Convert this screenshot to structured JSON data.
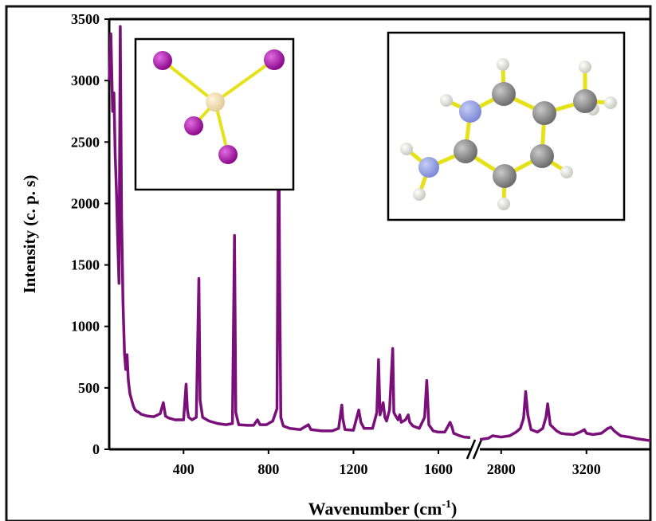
{
  "chart_data": {
    "type": "line",
    "xlabel": "Wavenumber (cm",
    "xlabel_sup": "-1",
    "xlabel_close": ")",
    "ylabel": "Intensity (c. p. s)",
    "ylim": [
      0,
      3500
    ],
    "yticks": [
      "0",
      "500",
      "1000",
      "1500",
      "2000",
      "2500",
      "3000",
      "3500"
    ],
    "axis_break": true,
    "segment1": {
      "xlim": [
        50,
        1750
      ],
      "xticks": [
        "400",
        "800",
        "1200",
        "1600"
      ]
    },
    "segment2": {
      "xlim": [
        2700,
        3500
      ],
      "xticks": [
        "2800",
        "3200"
      ]
    },
    "series": [
      {
        "color": "#7a0f7a",
        "segment1": {
          "x": [
            50,
            58,
            66,
            72,
            78,
            84,
            90,
            96,
            102,
            108,
            115,
            122,
            128,
            134,
            140,
            148,
            156,
            164,
            172,
            180,
            190,
            200,
            230,
            260,
            290,
            305,
            315,
            330,
            360,
            400,
            412,
            418,
            424,
            440,
            460,
            472,
            478,
            490,
            520,
            560,
            600,
            630,
            640,
            646,
            660,
            700,
            730,
            748,
            760,
            790,
            820,
            840,
            848,
            852,
            858,
            870,
            900,
            950,
            988,
            1000,
            1050,
            1100,
            1130,
            1145,
            1150,
            1160,
            1200,
            1225,
            1235,
            1250,
            1290,
            1310,
            1318,
            1325,
            1340,
            1348,
            1356,
            1370,
            1385,
            1390,
            1396,
            1410,
            1418,
            1425,
            1445,
            1458,
            1465,
            1480,
            1510,
            1535,
            1545,
            1555,
            1575,
            1600,
            1630,
            1655,
            1664,
            1672,
            1700,
            1720,
            1750
          ],
          "y": [
            3000,
            3380,
            2750,
            2900,
            2400,
            2100,
            1700,
            1350,
            3440,
            1900,
            1200,
            780,
            650,
            770,
            560,
            450,
            400,
            350,
            320,
            310,
            300,
            285,
            270,
            265,
            290,
            380,
            270,
            255,
            240,
            240,
            530,
            320,
            260,
            240,
            260,
            1390,
            400,
            260,
            230,
            210,
            200,
            210,
            1740,
            300,
            200,
            195,
            195,
            240,
            200,
            200,
            230,
            330,
            2810,
            1500,
            260,
            190,
            170,
            160,
            200,
            160,
            150,
            150,
            170,
            360,
            250,
            160,
            155,
            320,
            220,
            170,
            170,
            300,
            730,
            280,
            380,
            260,
            230,
            320,
            820,
            300,
            280,
            240,
            280,
            220,
            240,
            280,
            220,
            190,
            170,
            260,
            560,
            200,
            150,
            140,
            140,
            220,
            180,
            130,
            110,
            100,
            95
          ]
        },
        "segment2": {
          "x": [
            2700,
            2740,
            2760,
            2800,
            2840,
            2870,
            2890,
            2905,
            2915,
            2925,
            2940,
            2970,
            2995,
            3010,
            3018,
            3030,
            3060,
            3080,
            3100,
            3140,
            3170,
            3190,
            3200,
            3230,
            3270,
            3300,
            3315,
            3330,
            3360,
            3400,
            3440,
            3480,
            3500
          ],
          "y": [
            80,
            90,
            110,
            100,
            110,
            140,
            170,
            250,
            470,
            280,
            160,
            140,
            170,
            260,
            370,
            200,
            150,
            130,
            125,
            120,
            140,
            160,
            130,
            120,
            130,
            170,
            180,
            150,
            110,
            100,
            85,
            75,
            70
          ]
        }
      }
    ]
  }
}
